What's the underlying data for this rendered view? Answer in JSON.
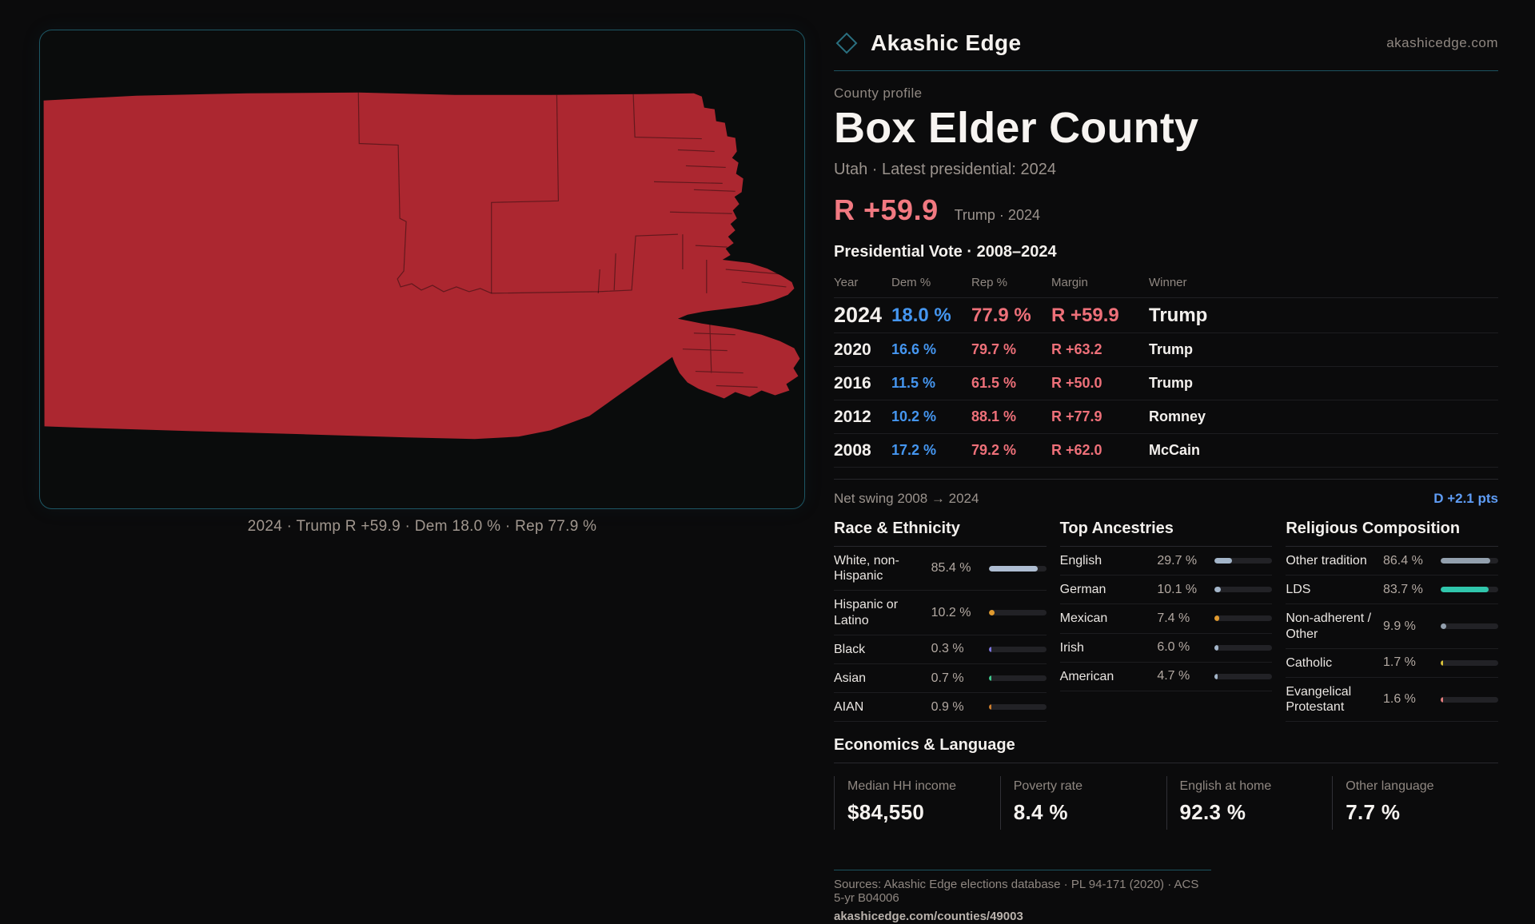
{
  "brand": {
    "name": "Akashic Edge",
    "domain": "akashicedge.com"
  },
  "page": {
    "eyebrow": "County profile",
    "title": "Box Elder County",
    "subtitle": "Utah · Latest presidential: 2024"
  },
  "headline": {
    "margin": "R +59.9",
    "note": "Trump · 2024"
  },
  "map": {
    "caption": "2024 · Trump R +59.9 · Dem 18.0 % · Rep 77.9 %",
    "fill_color": "#ac2730",
    "border_color": "#1d5765"
  },
  "vote_table": {
    "title": "Presidential Vote · 2008–2024",
    "columns": {
      "year": "Year",
      "dem": "Dem %",
      "rep": "Rep %",
      "margin": "Margin",
      "winner": "Winner"
    },
    "rows": [
      {
        "year": "2024",
        "dem": "18.0 %",
        "rep": "77.9 %",
        "margin": "R +59.9",
        "winner": "Trump"
      },
      {
        "year": "2020",
        "dem": "16.6 %",
        "rep": "79.7 %",
        "margin": "R +63.2",
        "winner": "Trump"
      },
      {
        "year": "2016",
        "dem": "11.5 %",
        "rep": "61.5 %",
        "margin": "R +50.0",
        "winner": "Trump"
      },
      {
        "year": "2012",
        "dem": "10.2 %",
        "rep": "88.1 %",
        "margin": "R +77.9",
        "winner": "Romney"
      },
      {
        "year": "2008",
        "dem": "17.2 %",
        "rep": "79.2 %",
        "margin": "R +62.0",
        "winner": "McCain"
      }
    ]
  },
  "net_swing": {
    "label": "Net swing 2008 → 2024",
    "value": "D +2.1 pts"
  },
  "race": {
    "title": "Race & Ethnicity",
    "items": [
      {
        "label": "White, non-Hispanic",
        "value": "85.4 %",
        "pct": 85.4,
        "color": "#aebdd2"
      },
      {
        "label": "Hispanic or Latino",
        "value": "10.2 %",
        "pct": 10.2,
        "color": "#e09a2f"
      },
      {
        "label": "Black",
        "value": "0.3 %",
        "pct": 0.3,
        "color": "#7d75e0"
      },
      {
        "label": "Asian",
        "value": "0.7 %",
        "pct": 0.7,
        "color": "#3fc98c"
      },
      {
        "label": "AIAN",
        "value": "0.9 %",
        "pct": 0.9,
        "color": "#cf7e2c"
      }
    ]
  },
  "ancestries": {
    "title": "Top Ancestries",
    "items": [
      {
        "label": "English",
        "value": "29.7 %",
        "pct": 29.7,
        "color": "#a3b5c9"
      },
      {
        "label": "German",
        "value": "10.1 %",
        "pct": 10.1,
        "color": "#a3b5c9"
      },
      {
        "label": "Mexican",
        "value": "7.4 %",
        "pct": 7.4,
        "color": "#e09a2f"
      },
      {
        "label": "Irish",
        "value": "6.0 %",
        "pct": 6.0,
        "color": "#a3b5c9"
      },
      {
        "label": "American",
        "value": "4.7 %",
        "pct": 4.7,
        "color": "#a3b5c9"
      }
    ]
  },
  "religion": {
    "title": "Religious Composition",
    "items": [
      {
        "label": "Other tradition",
        "value": "86.4 %",
        "pct": 86.4,
        "color": "#93a0ae"
      },
      {
        "label": "LDS",
        "value": "83.7 %",
        "pct": 83.7,
        "color": "#30c6ac"
      },
      {
        "label": "Non-adherent / Other",
        "value": "9.9 %",
        "pct": 9.9,
        "color": "#93a0ae"
      },
      {
        "label": "Catholic",
        "value": "1.7 %",
        "pct": 1.7,
        "color": "#d8c13a"
      },
      {
        "label": "Evangelical Protestant",
        "value": "1.6 %",
        "pct": 1.6,
        "color": "#e57d7d"
      }
    ]
  },
  "economics": {
    "title": "Economics & Language",
    "stats": [
      {
        "label": "Median HH income",
        "value": "$84,550"
      },
      {
        "label": "Poverty rate",
        "value": "8.4 %"
      },
      {
        "label": "English at home",
        "value": "92.3 %"
      },
      {
        "label": "Other language",
        "value": "7.7 %"
      }
    ]
  },
  "footer": {
    "sources": "Sources: Akashic Edge elections database · PL 94-171 (2020) · ACS 5-yr B04006",
    "link": "akashicedge.com/counties/49003"
  }
}
